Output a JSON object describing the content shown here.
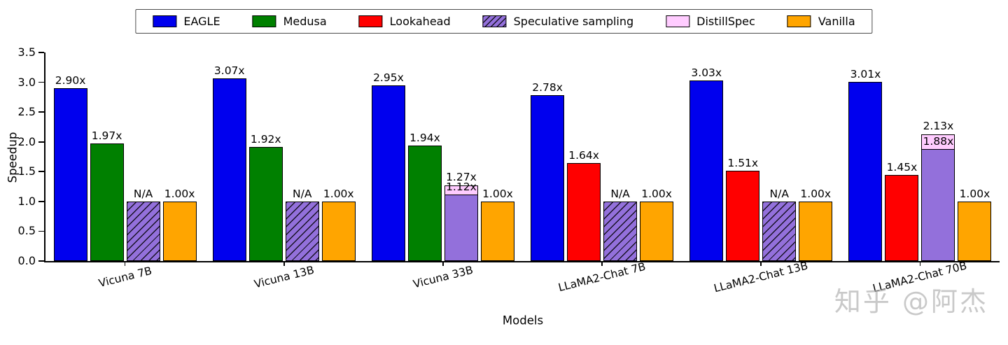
{
  "legend": {
    "items": [
      {
        "label": "EAGLE",
        "color": "#0000ee",
        "hatch": false
      },
      {
        "label": "Medusa",
        "color": "#008000",
        "hatch": false
      },
      {
        "label": "Lookahead",
        "color": "#ff0000",
        "hatch": false
      },
      {
        "label": "Speculative sampling",
        "color": "#9370db",
        "hatch": true
      },
      {
        "label": "DistillSpec",
        "color": "#ffccff",
        "hatch": false
      },
      {
        "label": "Vanilla",
        "color": "#ffa500",
        "hatch": false
      }
    ]
  },
  "chart_data": {
    "type": "bar",
    "title": "",
    "xlabel": "Models",
    "ylabel": "Speedup",
    "ylim": [
      0,
      3.5
    ],
    "yticks": [
      0.0,
      0.5,
      1.0,
      1.5,
      2.0,
      2.5,
      3.0,
      3.5
    ],
    "grid": false,
    "legend_position": "top-center",
    "categories": [
      "Vicuna 7B",
      "Vicuna 13B",
      "Vicuna 33B",
      "LLaMA2-Chat 7B",
      "LLaMA2-Chat 13B",
      "LLaMA2-Chat 70B"
    ],
    "groups": [
      {
        "category": "Vicuna 7B",
        "bars": [
          {
            "series": "EAGLE",
            "value": 2.9,
            "label": "2.90x",
            "color": "#0000ee"
          },
          {
            "series": "Medusa",
            "value": 1.97,
            "label": "1.97x",
            "color": "#008000"
          },
          {
            "series": "Speculative sampling",
            "value": 1.0,
            "label": "N/A",
            "color": "#9370db",
            "hatch": true
          },
          {
            "series": "Vanilla",
            "value": 1.0,
            "label": "1.00x",
            "color": "#ffa500"
          }
        ]
      },
      {
        "category": "Vicuna 13B",
        "bars": [
          {
            "series": "EAGLE",
            "value": 3.07,
            "label": "3.07x",
            "color": "#0000ee"
          },
          {
            "series": "Medusa",
            "value": 1.92,
            "label": "1.92x",
            "color": "#008000"
          },
          {
            "series": "Speculative sampling",
            "value": 1.0,
            "label": "N/A",
            "color": "#9370db",
            "hatch": true
          },
          {
            "series": "Vanilla",
            "value": 1.0,
            "label": "1.00x",
            "color": "#ffa500"
          }
        ]
      },
      {
        "category": "Vicuna 33B",
        "bars": [
          {
            "series": "EAGLE",
            "value": 2.95,
            "label": "2.95x",
            "color": "#0000ee"
          },
          {
            "series": "Medusa",
            "value": 1.94,
            "label": "1.94x",
            "color": "#008000"
          },
          {
            "series": "Speculative sampling",
            "value": 1.12,
            "label": "1.12x",
            "color": "#9370db",
            "behind": {
              "series": "DistillSpec",
              "value": 1.27,
              "label": "1.27x",
              "color": "#ffccff"
            }
          },
          {
            "series": "Vanilla",
            "value": 1.0,
            "label": "1.00x",
            "color": "#ffa500"
          }
        ]
      },
      {
        "category": "LLaMA2-Chat 7B",
        "bars": [
          {
            "series": "EAGLE",
            "value": 2.78,
            "label": "2.78x",
            "color": "#0000ee"
          },
          {
            "series": "Lookahead",
            "value": 1.64,
            "label": "1.64x",
            "color": "#ff0000"
          },
          {
            "series": "Speculative sampling",
            "value": 1.0,
            "label": "N/A",
            "color": "#9370db",
            "hatch": true
          },
          {
            "series": "Vanilla",
            "value": 1.0,
            "label": "1.00x",
            "color": "#ffa500"
          }
        ]
      },
      {
        "category": "LLaMA2-Chat 13B",
        "bars": [
          {
            "series": "EAGLE",
            "value": 3.03,
            "label": "3.03x",
            "color": "#0000ee"
          },
          {
            "series": "Lookahead",
            "value": 1.51,
            "label": "1.51x",
            "color": "#ff0000"
          },
          {
            "series": "Speculative sampling",
            "value": 1.0,
            "label": "N/A",
            "color": "#9370db",
            "hatch": true
          },
          {
            "series": "Vanilla",
            "value": 1.0,
            "label": "1.00x",
            "color": "#ffa500"
          }
        ]
      },
      {
        "category": "LLaMA2-Chat 70B",
        "bars": [
          {
            "series": "EAGLE",
            "value": 3.01,
            "label": "3.01x",
            "color": "#0000ee"
          },
          {
            "series": "Lookahead",
            "value": 1.45,
            "label": "1.45x",
            "color": "#ff0000"
          },
          {
            "series": "Speculative sampling",
            "value": 1.88,
            "label": "1.88x",
            "color": "#9370db",
            "behind": {
              "series": "DistillSpec",
              "value": 2.13,
              "label": "2.13x",
              "color": "#ffccff"
            }
          },
          {
            "series": "Vanilla",
            "value": 1.0,
            "label": "1.00x",
            "color": "#ffa500"
          }
        ]
      }
    ]
  },
  "watermark": "知乎 @阿杰"
}
